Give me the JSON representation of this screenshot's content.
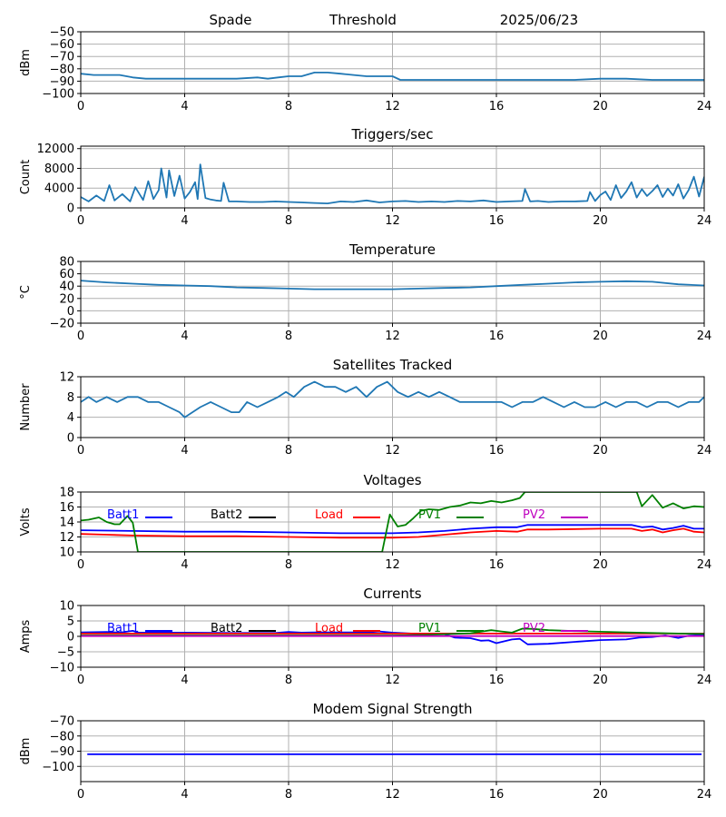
{
  "header": {
    "station": "Spade",
    "plot_kind": "Threshold",
    "date": "2025/06/23"
  },
  "colors": {
    "series_default": "#1f77b4",
    "batt1": "#0000ff",
    "batt2": "#000000",
    "load": "#ff0000",
    "pv1": "#008000",
    "pv2": "#bf00bf",
    "modem": "#0000ff",
    "grid": "#b0b0b0"
  },
  "chart_data": [
    {
      "type": "line",
      "id": "threshold",
      "title": "",
      "ylabel": "dBm",
      "xlim": [
        0,
        24
      ],
      "ylim": [
        -100,
        -50
      ],
      "yticks": [
        -100,
        -90,
        -80,
        -70,
        -60,
        -50
      ],
      "ytick_labels": [
        "−100",
        "−90",
        "−80",
        "−70",
        "−60",
        "−50"
      ],
      "xticks": [
        0,
        4,
        8,
        12,
        16,
        20,
        24
      ],
      "series": [
        {
          "color": "#1f77b4",
          "x": [
            0,
            0.5,
            1,
            1.5,
            2,
            2.5,
            3,
            3.5,
            4,
            5,
            6,
            6.8,
            7.2,
            7.6,
            8,
            8.5,
            9,
            9.5,
            10,
            10.5,
            11,
            11.5,
            12,
            12.3,
            13,
            14,
            15,
            16,
            17,
            18,
            19,
            20,
            21,
            22,
            23,
            24
          ],
          "y": [
            -84,
            -85,
            -85,
            -85,
            -87,
            -88,
            -88,
            -88,
            -88,
            -88,
            -88,
            -87,
            -88,
            -87,
            -86,
            -86,
            -83,
            -83,
            -84,
            -85,
            -86,
            -86,
            -86,
            -89,
            -89,
            -89,
            -89,
            -89,
            -89,
            -89,
            -89,
            -88,
            -88,
            -89,
            -89,
            -89
          ]
        }
      ]
    },
    {
      "type": "line",
      "id": "triggers",
      "title": "Triggers/sec",
      "ylabel": "Count",
      "xlim": [
        0,
        24
      ],
      "ylim": [
        0,
        12500
      ],
      "yticks": [
        0,
        4000,
        8000,
        12000
      ],
      "ytick_labels": [
        "0",
        "4000",
        "8000",
        "12000"
      ],
      "xticks": [
        0,
        4,
        8,
        12,
        16,
        20,
        24
      ],
      "series": [
        {
          "color": "#1f77b4",
          "x": [
            0,
            0.3,
            0.6,
            0.9,
            1.1,
            1.3,
            1.6,
            1.9,
            2.1,
            2.4,
            2.6,
            2.8,
            3.0,
            3.1,
            3.3,
            3.4,
            3.6,
            3.8,
            4.0,
            4.2,
            4.4,
            4.5,
            4.6,
            4.8,
            5.0,
            5.2,
            5.4,
            5.5,
            5.7,
            6.0,
            6.5,
            7.0,
            7.5,
            8.0,
            8.5,
            9.0,
            9.5,
            10.0,
            10.5,
            11.0,
            11.5,
            12.0,
            12.5,
            13.0,
            13.5,
            14.0,
            14.5,
            15.0,
            15.5,
            16.0,
            16.5,
            17.0,
            17.1,
            17.3,
            17.6,
            18.0,
            18.5,
            19.0,
            19.5,
            19.6,
            19.8,
            20.0,
            20.2,
            20.4,
            20.6,
            20.8,
            21.0,
            21.2,
            21.4,
            21.6,
            21.8,
            22.0,
            22.2,
            22.4,
            22.6,
            22.8,
            23.0,
            23.2,
            23.4,
            23.6,
            23.8,
            24.0
          ],
          "y": [
            2200,
            1300,
            2500,
            1400,
            4600,
            1500,
            2800,
            1300,
            4200,
            1600,
            5400,
            1800,
            3600,
            8000,
            2100,
            7600,
            2400,
            6500,
            1900,
            3200,
            5200,
            1800,
            8800,
            2000,
            1700,
            1500,
            1400,
            5100,
            1300,
            1300,
            1200,
            1200,
            1300,
            1200,
            1100,
            1000,
            900,
            1300,
            1200,
            1500,
            1100,
            1300,
            1400,
            1200,
            1300,
            1200,
            1400,
            1300,
            1500,
            1200,
            1300,
            1400,
            3800,
            1300,
            1400,
            1200,
            1300,
            1300,
            1400,
            3200,
            1400,
            2600,
            3300,
            1600,
            4600,
            2000,
            3300,
            5200,
            2100,
            3800,
            2400,
            3400,
            4600,
            2200,
            3900,
            2500,
            4800,
            1900,
            3600,
            6300,
            2300,
            6300
          ]
        }
      ]
    },
    {
      "type": "line",
      "id": "temperature",
      "title": "Temperature",
      "ylabel": "°C",
      "xlim": [
        0,
        24
      ],
      "ylim": [
        -20,
        80
      ],
      "yticks": [
        -20,
        0,
        20,
        40,
        60,
        80
      ],
      "ytick_labels": [
        "−20",
        "0",
        "20",
        "40",
        "60",
        "80"
      ],
      "xticks": [
        0,
        4,
        8,
        12,
        16,
        20,
        24
      ],
      "series": [
        {
          "color": "#1f77b4",
          "x": [
            0,
            1,
            2,
            3,
            4,
            5,
            6,
            7,
            8,
            9,
            10,
            11,
            12,
            13,
            14,
            15,
            16,
            17,
            18,
            19,
            20,
            21,
            22,
            23,
            24
          ],
          "y": [
            49,
            46,
            44,
            42,
            41,
            40,
            38,
            37,
            36,
            35,
            35,
            35,
            35,
            36,
            37,
            38,
            40,
            42,
            44,
            46,
            47,
            48,
            47,
            43,
            41
          ]
        }
      ]
    },
    {
      "type": "line",
      "id": "satellites",
      "title": "Satellites Tracked",
      "ylabel": "Number",
      "xlim": [
        0,
        24
      ],
      "ylim": [
        0,
        12
      ],
      "yticks": [
        0,
        4,
        8,
        12
      ],
      "ytick_labels": [
        "0",
        "4",
        "8",
        "12"
      ],
      "xticks": [
        0,
        4,
        8,
        12,
        16,
        20,
        24
      ],
      "series": [
        {
          "color": "#1f77b4",
          "x": [
            0,
            0.3,
            0.6,
            1,
            1.4,
            1.8,
            2.2,
            2.6,
            3,
            3.4,
            3.8,
            4,
            4.3,
            4.6,
            5,
            5.4,
            5.8,
            6.1,
            6.4,
            6.8,
            7.2,
            7.6,
            7.9,
            8.2,
            8.6,
            9,
            9.4,
            9.8,
            10.2,
            10.6,
            11,
            11.4,
            11.8,
            12.2,
            12.6,
            13,
            13.4,
            13.8,
            14.2,
            14.6,
            15,
            15.4,
            15.8,
            16.2,
            16.6,
            17,
            17.4,
            17.8,
            18.2,
            18.6,
            19,
            19.4,
            19.8,
            20.2,
            20.6,
            21,
            21.4,
            21.8,
            22.2,
            22.6,
            23,
            23.4,
            23.8,
            24
          ],
          "y": [
            7,
            8,
            7,
            8,
            7,
            8,
            8,
            7,
            7,
            6,
            5,
            4,
            5,
            6,
            7,
            6,
            5,
            5,
            7,
            6,
            7,
            8,
            9,
            8,
            10,
            11,
            10,
            10,
            9,
            10,
            8,
            10,
            11,
            9,
            8,
            9,
            8,
            9,
            8,
            7,
            7,
            7,
            7,
            7,
            6,
            7,
            7,
            8,
            7,
            6,
            7,
            6,
            6,
            7,
            6,
            7,
            7,
            6,
            7,
            7,
            6,
            7,
            7,
            8
          ]
        }
      ]
    },
    {
      "type": "line",
      "id": "voltages",
      "title": "Voltages",
      "ylabel": "Volts",
      "xlim": [
        0,
        24
      ],
      "ylim": [
        10,
        18
      ],
      "yticks": [
        10,
        12,
        14,
        16,
        18
      ],
      "ytick_labels": [
        "10",
        "12",
        "14",
        "16",
        "18"
      ],
      "xticks": [
        0,
        4,
        8,
        12,
        16,
        20,
        24
      ],
      "legend": [
        "Batt1",
        "Batt2",
        "Load",
        "PV1",
        "PV2"
      ],
      "series": [
        {
          "name": "Batt1",
          "color": "#0000ff",
          "x": [
            0,
            2,
            4,
            6,
            8,
            10,
            12,
            13,
            14,
            15,
            16,
            16.8,
            17.2,
            18,
            20,
            21.2,
            21.6,
            22,
            22.4,
            22.8,
            23.2,
            23.6,
            24
          ],
          "y": [
            12.9,
            12.8,
            12.7,
            12.7,
            12.6,
            12.5,
            12.5,
            12.6,
            12.8,
            13.1,
            13.3,
            13.3,
            13.6,
            13.6,
            13.6,
            13.6,
            13.3,
            13.4,
            13.0,
            13.2,
            13.5,
            13.1,
            13.1
          ]
        },
        {
          "name": "Load",
          "color": "#ff0000",
          "x": [
            0,
            1,
            2,
            4,
            6,
            8,
            10,
            12,
            13,
            14,
            15,
            16,
            16.8,
            17.2,
            18,
            20,
            21.2,
            21.6,
            22,
            22.4,
            22.8,
            23.2,
            23.6,
            24
          ],
          "y": [
            12.4,
            12.3,
            12.2,
            12.1,
            12.1,
            12.0,
            11.9,
            11.9,
            12.0,
            12.3,
            12.6,
            12.8,
            12.7,
            13.0,
            13.0,
            13.1,
            13.1,
            12.8,
            13.0,
            12.6,
            12.9,
            13.1,
            12.7,
            12.6
          ]
        },
        {
          "name": "PV1",
          "color": "#008000",
          "x": [
            0,
            0.3,
            0.7,
            1.0,
            1.3,
            1.5,
            1.8,
            2.0,
            2.2,
            11.6,
            11.9,
            12.2,
            12.5,
            12.8,
            13.1,
            13.4,
            13.8,
            14.2,
            14.6,
            15.0,
            15.4,
            15.8,
            16.2,
            16.6,
            16.9,
            17.1,
            21.4,
            21.6,
            22.0,
            22.4,
            22.8,
            23.2,
            23.6,
            24.0
          ],
          "y": [
            14.2,
            14.3,
            14.6,
            14.0,
            13.7,
            13.7,
            14.8,
            13.9,
            10.0,
            10.0,
            15.0,
            13.4,
            13.6,
            14.5,
            15.5,
            15.7,
            15.6,
            16.0,
            16.2,
            16.6,
            16.5,
            16.8,
            16.6,
            16.9,
            17.2,
            18.0,
            18.0,
            16.1,
            17.6,
            15.9,
            16.5,
            15.8,
            16.1,
            16.0
          ]
        },
        {
          "name": "Batt2",
          "color": "#000000",
          "x": [],
          "y": []
        },
        {
          "name": "PV2",
          "color": "#bf00bf",
          "x": [],
          "y": []
        }
      ]
    },
    {
      "type": "line",
      "id": "currents",
      "title": "Currents",
      "ylabel": "Amps",
      "xlim": [
        0,
        24
      ],
      "ylim": [
        -10,
        10
      ],
      "yticks": [
        -10,
        -5,
        0,
        5,
        10
      ],
      "ytick_labels": [
        "−10",
        "−5",
        "0",
        "5",
        "10"
      ],
      "xticks": [
        0,
        4,
        8,
        12,
        16,
        20,
        24
      ],
      "legend": [
        "Batt1",
        "Batt2",
        "Load",
        "PV1",
        "PV2"
      ],
      "series": [
        {
          "name": "Batt1",
          "color": "#0000ff",
          "x": [
            0,
            1,
            1.5,
            2,
            2.2,
            4,
            6,
            7.5,
            8,
            8.5,
            9,
            10,
            11,
            11.5,
            12,
            13,
            14,
            14.4,
            15,
            15.4,
            15.7,
            16,
            16.6,
            16.9,
            17.2,
            18,
            19,
            20,
            21,
            21.5,
            22,
            22.5,
            23,
            23.4,
            23.8,
            24
          ],
          "y": [
            1.3,
            1.4,
            1.2,
            1.8,
            1.2,
            1.2,
            1.1,
            1.1,
            1.4,
            1.2,
            1.3,
            1.3,
            1.3,
            1.6,
            1.2,
            0.8,
            0.7,
            -0.4,
            -0.6,
            -1.4,
            -1.3,
            -2.2,
            -1.0,
            -0.8,
            -2.6,
            -2.4,
            -1.8,
            -1.2,
            -1.0,
            -0.4,
            -0.2,
            0.3,
            -0.5,
            0.2,
            0.4,
            0.5
          ]
        },
        {
          "name": "Load",
          "color": "#ff0000",
          "x": [
            0,
            4,
            8,
            12,
            16,
            20,
            24
          ],
          "y": [
            0.9,
            0.9,
            0.9,
            0.9,
            0.9,
            0.9,
            0.9
          ]
        },
        {
          "name": "PV1",
          "color": "#008000",
          "x": [
            0,
            12,
            13,
            14,
            15,
            15.4,
            15.8,
            16.2,
            16.6,
            17,
            17.4,
            18,
            19,
            20,
            21,
            22,
            23,
            24
          ],
          "y": [
            0.3,
            0.3,
            0.4,
            0.7,
            1.0,
            1.5,
            2.0,
            1.6,
            1.2,
            2.5,
            2.4,
            2.0,
            1.7,
            1.5,
            1.3,
            1.1,
            0.9,
            0.8
          ]
        },
        {
          "name": "PV2",
          "color": "#bf00bf",
          "x": [
            0,
            24
          ],
          "y": [
            0.1,
            0.1
          ]
        },
        {
          "name": "Batt2",
          "color": "#000000",
          "x": [],
          "y": []
        }
      ]
    },
    {
      "type": "line",
      "id": "modem",
      "title": "Modem Signal Strength",
      "ylabel": "dBm",
      "xlim": [
        0,
        24
      ],
      "ylim": [
        -110,
        -70
      ],
      "yticks": [
        -100,
        -90,
        -80,
        -70
      ],
      "ytick_labels": [
        "−100",
        "−90",
        "−80",
        "−70"
      ],
      "xticks": [
        0,
        4,
        8,
        12,
        16,
        20,
        24
      ],
      "series": [
        {
          "color": "#0000ff",
          "x": [
            0.25,
            23.9
          ],
          "y": [
            -92,
            -92
          ]
        }
      ]
    }
  ]
}
